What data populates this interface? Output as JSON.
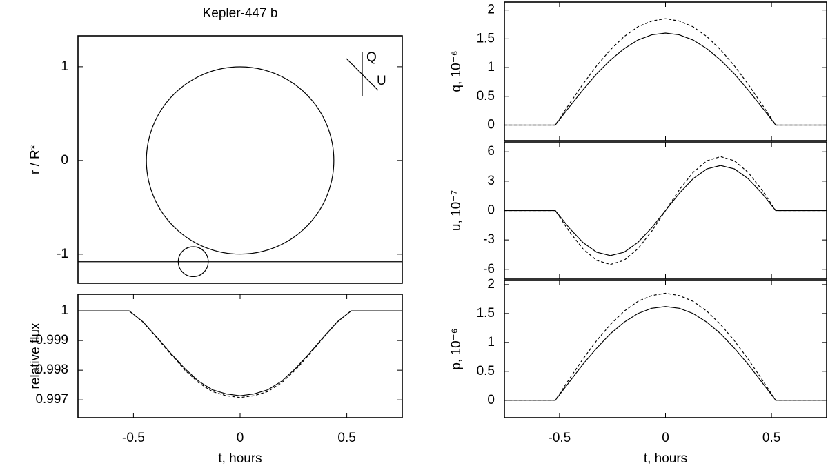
{
  "chart_data": [
    {
      "type": "geometry",
      "title": "Kepler-447 b",
      "ylabel": "r / R*",
      "xlim": [
        -1.73,
        1.73
      ],
      "ylim": [
        -1.31,
        1.33
      ],
      "yticks": [
        -1,
        0,
        1
      ],
      "star": {
        "x": 0,
        "y": 0,
        "r": 1
      },
      "planet": {
        "x": -0.5,
        "y": -1.08,
        "r": 0.16
      },
      "orbit_y": -1.08,
      "polarization_axes": [
        "Q",
        "U"
      ]
    },
    {
      "type": "line",
      "xlabel": "t, hours",
      "ylabel": "relative flux",
      "xlim": [
        -0.76,
        0.76
      ],
      "xticks": [
        -0.5,
        0,
        0.5
      ],
      "ylim": [
        0.9964,
        1.00056
      ],
      "yticks": [
        0.997,
        0.998,
        0.999,
        1
      ],
      "x": [
        -0.76,
        -0.52,
        -0.455,
        -0.39,
        -0.325,
        -0.26,
        -0.195,
        -0.13,
        -0.065,
        0,
        0.065,
        0.13,
        0.195,
        0.26,
        0.325,
        0.39,
        0.455,
        0.52,
        0.76
      ],
      "series": [
        {
          "color": "#000000",
          "dash": false,
          "values": [
            1,
            1,
            0.99963,
            0.99911,
            0.99857,
            0.99806,
            0.99763,
            0.99734,
            0.9972,
            0.99714,
            0.9972,
            0.99734,
            0.99763,
            0.99806,
            0.99857,
            0.99911,
            0.99963,
            1,
            1
          ]
        },
        {
          "color": "#000000",
          "dash": true,
          "values": [
            1,
            1,
            0.99962,
            0.99909,
            0.99854,
            0.99801,
            0.99758,
            0.99728,
            0.99714,
            0.99708,
            0.99714,
            0.99728,
            0.99758,
            0.99801,
            0.99854,
            0.99909,
            0.99962,
            1,
            1
          ]
        }
      ]
    },
    {
      "type": "line",
      "ylabel": "q, 10⁻⁶",
      "xtick_labels": false,
      "xlim": [
        -0.76,
        0.76
      ],
      "xticks": [
        -0.5,
        0,
        0.5
      ],
      "ylim": [
        -0.27,
        2.14
      ],
      "yticks": [
        0,
        0.5,
        1,
        1.5,
        2
      ],
      "x": [
        -0.76,
        -0.52,
        -0.455,
        -0.39,
        -0.325,
        -0.26,
        -0.195,
        -0.13,
        -0.065,
        0,
        0.065,
        0.13,
        0.195,
        0.26,
        0.325,
        0.39,
        0.455,
        0.52,
        0.76
      ],
      "series": [
        {
          "color": "#000000",
          "dash": false,
          "values": [
            0,
            0,
            0.31,
            0.61,
            0.89,
            1.13,
            1.33,
            1.48,
            1.57,
            1.6,
            1.57,
            1.48,
            1.33,
            1.13,
            0.89,
            0.61,
            0.31,
            0,
            0
          ]
        },
        {
          "color": "#000000",
          "dash": true,
          "values": [
            0,
            0,
            0.36,
            0.71,
            1.03,
            1.31,
            1.54,
            1.71,
            1.81,
            1.85,
            1.81,
            1.71,
            1.54,
            1.31,
            1.03,
            0.71,
            0.36,
            0,
            0
          ]
        }
      ]
    },
    {
      "type": "line",
      "ylabel": "u, 10⁻⁷",
      "xtick_labels": false,
      "xlim": [
        -0.76,
        0.76
      ],
      "xticks": [
        -0.5,
        0,
        0.5
      ],
      "ylim": [
        -7,
        7
      ],
      "yticks": [
        -6,
        -3,
        0,
        3,
        6
      ],
      "x": [
        -0.76,
        -0.52,
        -0.455,
        -0.39,
        -0.325,
        -0.26,
        -0.195,
        -0.13,
        -0.065,
        0,
        0.065,
        0.13,
        0.195,
        0.26,
        0.325,
        0.39,
        0.455,
        0.52,
        0.76
      ],
      "series": [
        {
          "color": "#000000",
          "dash": false,
          "values": [
            0,
            0,
            -1.76,
            -3.25,
            -4.25,
            -4.6,
            -4.25,
            -3.25,
            -1.76,
            0,
            1.76,
            3.25,
            4.25,
            4.6,
            4.25,
            3.25,
            1.76,
            0,
            0
          ]
        },
        {
          "color": "#000000",
          "dash": true,
          "values": [
            0,
            0,
            -2.11,
            -3.89,
            -5.08,
            -5.5,
            -5.08,
            -3.89,
            -2.11,
            0,
            2.11,
            3.89,
            5.08,
            5.5,
            5.08,
            3.89,
            2.11,
            0,
            0
          ]
        }
      ]
    },
    {
      "type": "line",
      "xlabel": "t, hours",
      "ylabel": "p, 10⁻⁶",
      "xlim": [
        -0.76,
        0.76
      ],
      "xticks": [
        -0.5,
        0,
        0.5
      ],
      "ylim": [
        -0.3,
        2.07
      ],
      "yticks": [
        0,
        0.5,
        1,
        1.5,
        2
      ],
      "x": [
        -0.76,
        -0.52,
        -0.455,
        -0.39,
        -0.325,
        -0.26,
        -0.195,
        -0.13,
        -0.065,
        0,
        0.065,
        0.13,
        0.195,
        0.26,
        0.325,
        0.39,
        0.455,
        0.52,
        0.76
      ],
      "series": [
        {
          "color": "#000000",
          "dash": false,
          "values": [
            0,
            0,
            0.31,
            0.62,
            0.9,
            1.15,
            1.35,
            1.5,
            1.59,
            1.62,
            1.59,
            1.5,
            1.35,
            1.15,
            0.9,
            0.62,
            0.31,
            0,
            0
          ]
        },
        {
          "color": "#000000",
          "dash": true,
          "values": [
            0,
            0,
            0.36,
            0.71,
            1.03,
            1.31,
            1.54,
            1.71,
            1.81,
            1.85,
            1.81,
            1.71,
            1.54,
            1.31,
            1.03,
            0.71,
            0.36,
            0,
            0
          ]
        }
      ]
    }
  ]
}
